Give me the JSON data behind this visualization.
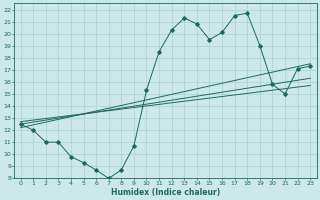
{
  "xlabel": "Humidex (Indice chaleur)",
  "bg_color": "#cce8e8",
  "grid_color": "#aad0d0",
  "line_color": "#1a6b5a",
  "xlim": [
    -0.5,
    23.5
  ],
  "ylim": [
    8,
    22.5
  ],
  "xticks": [
    0,
    1,
    2,
    3,
    4,
    5,
    6,
    7,
    8,
    9,
    10,
    11,
    12,
    13,
    14,
    15,
    16,
    17,
    18,
    19,
    20,
    21,
    22,
    23
  ],
  "yticks": [
    8,
    9,
    10,
    11,
    12,
    13,
    14,
    15,
    16,
    17,
    18,
    19,
    20,
    21,
    22
  ],
  "data_x": [
    0,
    1,
    2,
    3,
    4,
    5,
    6,
    7,
    8,
    9,
    10,
    11,
    12,
    13,
    14,
    15,
    16,
    17,
    18,
    19,
    20,
    21,
    22,
    23
  ],
  "data_y": [
    12.5,
    12.0,
    11.0,
    11.0,
    9.8,
    9.3,
    8.7,
    8.0,
    8.7,
    10.7,
    15.3,
    18.5,
    20.3,
    21.3,
    20.8,
    19.5,
    20.1,
    21.5,
    21.7,
    19.0,
    15.8,
    15.0,
    17.1,
    17.3
  ],
  "line1_x": [
    0,
    23
  ],
  "line1_y": [
    12.2,
    17.5
  ],
  "line2_x": [
    0,
    23
  ],
  "line2_y": [
    12.5,
    16.3
  ],
  "line3_x": [
    0,
    23
  ],
  "line3_y": [
    12.7,
    15.7
  ]
}
